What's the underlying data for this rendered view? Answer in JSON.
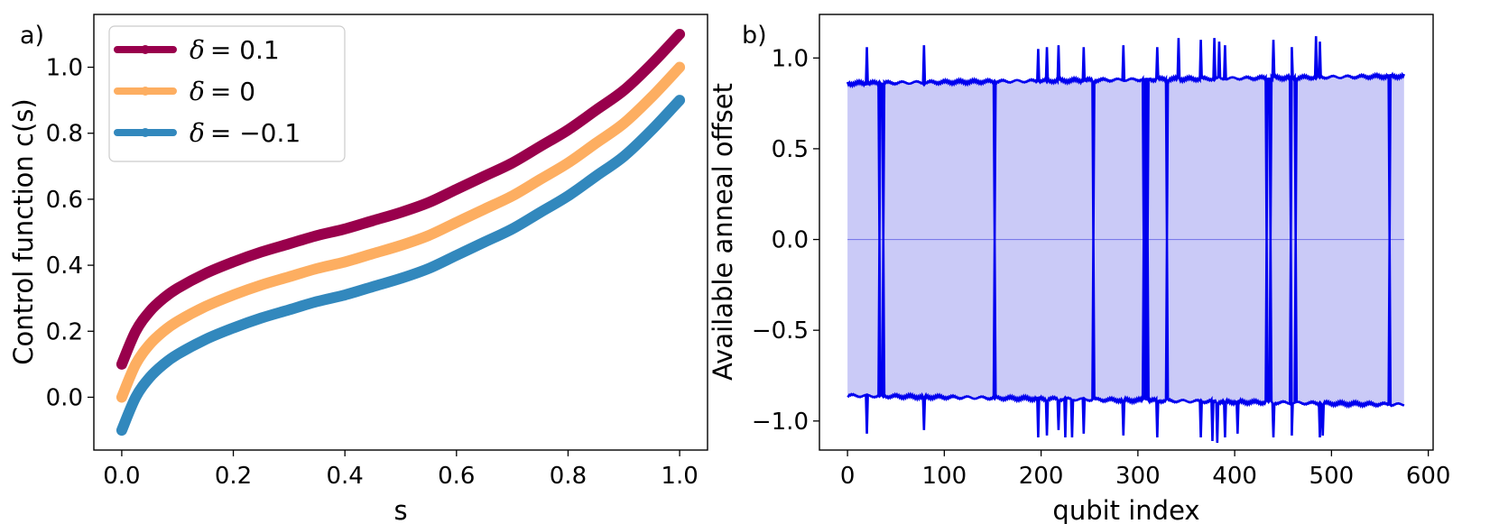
{
  "chart_data": [
    {
      "type": "line",
      "panel_label": "a)",
      "xlabel": "s",
      "ylabel": "Control function c(s)",
      "xlim": [
        -0.05,
        1.05
      ],
      "ylim": [
        -0.16,
        1.16
      ],
      "xticks": [
        0.0,
        0.2,
        0.4,
        0.6,
        0.8,
        1.0
      ],
      "xtick_labels": [
        "0.0",
        "0.2",
        "0.4",
        "0.6",
        "0.8",
        "1.0"
      ],
      "yticks": [
        0.0,
        0.2,
        0.4,
        0.6,
        0.8,
        1.0
      ],
      "ytick_labels": [
        "0.0",
        "0.2",
        "0.4",
        "0.6",
        "0.8",
        "1.0"
      ],
      "legend_position": "top-left",
      "x": [
        0.0,
        0.025,
        0.05,
        0.075,
        0.1,
        0.15,
        0.2,
        0.25,
        0.3,
        0.35,
        0.4,
        0.45,
        0.5,
        0.55,
        0.6,
        0.65,
        0.7,
        0.75,
        0.8,
        0.85,
        0.9,
        0.95,
        1.0
      ],
      "series": [
        {
          "name": "δ = 0.1",
          "legend_prefix": "δ",
          "legend_value": "= 0.1",
          "color": "#99004c",
          "values": [
            0.1,
            0.2,
            0.26,
            0.3,
            0.33,
            0.375,
            0.41,
            0.44,
            0.465,
            0.49,
            0.51,
            0.535,
            0.56,
            0.59,
            0.63,
            0.67,
            0.71,
            0.76,
            0.81,
            0.87,
            0.93,
            1.01,
            1.1
          ]
        },
        {
          "name": "δ = 0",
          "legend_prefix": "δ",
          "legend_value": "= 0",
          "color": "#fdae61",
          "values": [
            0.0,
            0.1,
            0.16,
            0.2,
            0.23,
            0.275,
            0.31,
            0.34,
            0.365,
            0.39,
            0.41,
            0.435,
            0.46,
            0.49,
            0.53,
            0.57,
            0.61,
            0.66,
            0.71,
            0.77,
            0.83,
            0.91,
            1.0
          ]
        },
        {
          "name": "δ = −0.1",
          "legend_prefix": "δ",
          "legend_value": "= −0.1",
          "color": "#3288bd",
          "values": [
            -0.1,
            0.0,
            0.06,
            0.1,
            0.13,
            0.175,
            0.21,
            0.24,
            0.265,
            0.29,
            0.31,
            0.335,
            0.36,
            0.39,
            0.43,
            0.47,
            0.51,
            0.56,
            0.61,
            0.67,
            0.73,
            0.81,
            0.9
          ]
        }
      ]
    },
    {
      "type": "area",
      "panel_label": "b)",
      "xlabel": "qubit index",
      "ylabel": "Available anneal offset",
      "xlim": [
        -29,
        605
      ],
      "ylim": [
        -1.16,
        1.24
      ],
      "xticks": [
        0,
        100,
        200,
        300,
        400,
        500,
        600
      ],
      "xtick_labels": [
        "0",
        "100",
        "200",
        "300",
        "400",
        "500",
        "600"
      ],
      "yticks": [
        -1.0,
        -0.5,
        0.0,
        0.5,
        1.0
      ],
      "ytick_labels": [
        "−1.0",
        "−0.5",
        "0.0",
        "0.5",
        "1.0"
      ],
      "n_qubits": 576,
      "upper_baseline": {
        "start": 0.86,
        "end": 0.9
      },
      "lower_baseline": {
        "start": -0.86,
        "end": -0.91
      },
      "upper_spikes": [
        {
          "qubit": 20,
          "value": 1.06
        },
        {
          "qubit": 79,
          "value": 1.07
        },
        {
          "qubit": 197,
          "value": 1.05
        },
        {
          "qubit": 206,
          "value": 1.06
        },
        {
          "qubit": 218,
          "value": 1.07
        },
        {
          "qubit": 244,
          "value": 1.06
        },
        {
          "qubit": 285,
          "value": 1.07
        },
        {
          "qubit": 320,
          "value": 1.06
        },
        {
          "qubit": 342,
          "value": 1.11
        },
        {
          "qubit": 365,
          "value": 1.1
        },
        {
          "qubit": 379,
          "value": 1.11
        },
        {
          "qubit": 384,
          "value": 1.09
        },
        {
          "qubit": 390,
          "value": 1.07
        },
        {
          "qubit": 440,
          "value": 1.1
        },
        {
          "qubit": 459,
          "value": 1.06
        },
        {
          "qubit": 484,
          "value": 1.12
        },
        {
          "qubit": 488,
          "value": 1.09
        }
      ],
      "lower_spikes": [
        {
          "qubit": 20,
          "value": -1.07
        },
        {
          "qubit": 79,
          "value": -1.05
        },
        {
          "qubit": 197,
          "value": -1.09
        },
        {
          "qubit": 206,
          "value": -1.08
        },
        {
          "qubit": 218,
          "value": -1.05
        },
        {
          "qubit": 225,
          "value": -1.09
        },
        {
          "qubit": 232,
          "value": -1.09
        },
        {
          "qubit": 244,
          "value": -1.07
        },
        {
          "qubit": 285,
          "value": -1.08
        },
        {
          "qubit": 320,
          "value": -1.09
        },
        {
          "qubit": 365,
          "value": -1.09
        },
        {
          "qubit": 377,
          "value": -1.11
        },
        {
          "qubit": 382,
          "value": -1.12
        },
        {
          "qubit": 390,
          "value": -1.09
        },
        {
          "qubit": 403,
          "value": -1.07
        },
        {
          "qubit": 440,
          "value": -1.09
        },
        {
          "qubit": 459,
          "value": -1.08
        },
        {
          "qubit": 488,
          "value": -1.09
        },
        {
          "qubit": 491,
          "value": -1.08
        }
      ],
      "dead_qubits": [
        33,
        37,
        152,
        254,
        306,
        308,
        310,
        330,
        433,
        437,
        458,
        463,
        560
      ],
      "line_color": "#0000ee",
      "fill_color": "#cacaf7",
      "zero_line_color": "#7b7bea"
    }
  ]
}
